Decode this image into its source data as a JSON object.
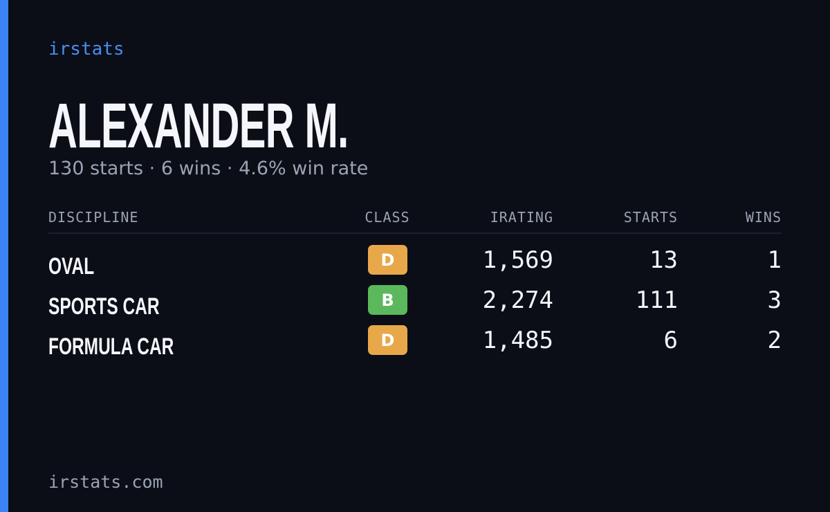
{
  "brand": "irstats",
  "name": "ALEXANDER M.",
  "summary": "130 starts · 6 wins · 4.6% win rate",
  "table": {
    "headers": [
      "DISCIPLINE",
      "CLASS",
      "IRATING",
      "STARTS",
      "WINS"
    ],
    "rows": [
      {
        "discipline": "OVAL",
        "class": "D",
        "class_color": "#e8a84a",
        "irating": "1,569",
        "starts": "13",
        "wins": "1"
      },
      {
        "discipline": "SPORTS CAR",
        "class": "B",
        "class_color": "#5cb85c",
        "irating": "2,274",
        "starts": "111",
        "wins": "3"
      },
      {
        "discipline": "FORMULA CAR",
        "class": "D",
        "class_color": "#e8a84a",
        "irating": "1,485",
        "starts": "6",
        "wins": "2"
      }
    ]
  },
  "footer": "irstats.com"
}
